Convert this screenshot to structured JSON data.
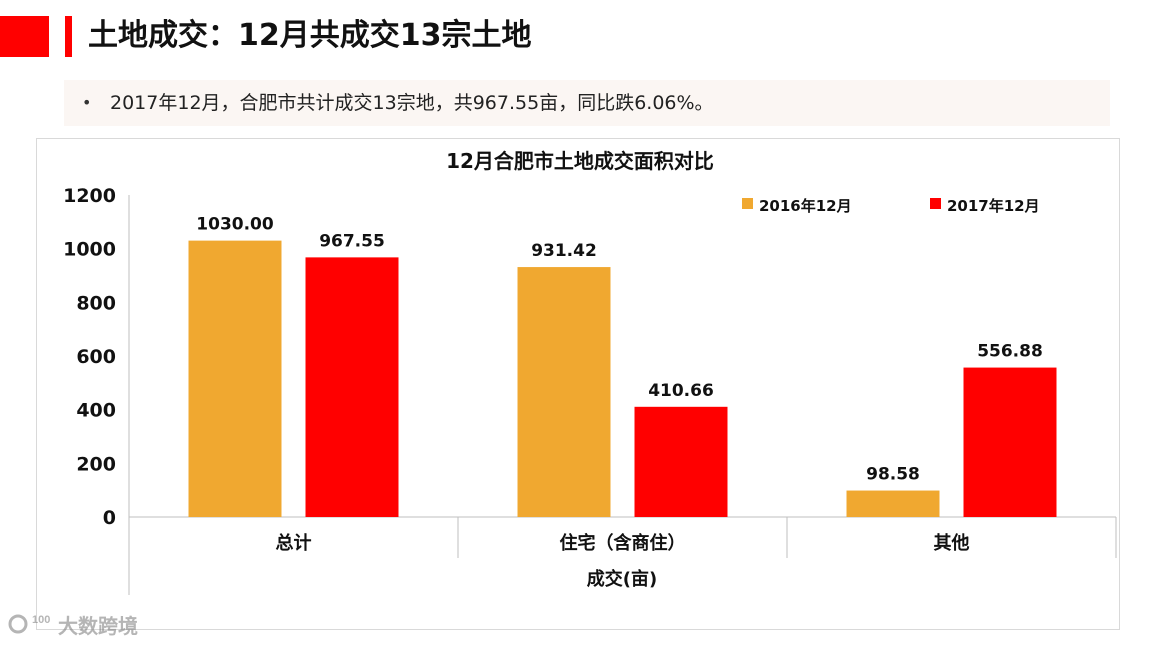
{
  "header": {
    "title": "土地成交：12月共成交13宗土地",
    "bullet": "2017年12月，合肥市共计成交13宗地，共967.55亩，同比跌6.06%。",
    "bullet_marker": "•"
  },
  "watermark": {
    "text": "大数跨境",
    "logo_text": "100"
  },
  "colors": {
    "accent": "#ff0000",
    "series_2016": "#f0a830",
    "series_2017": "#ff0000"
  },
  "chart_data": {
    "type": "bar",
    "title": "12月合肥市土地成交面积对比",
    "xlabel": "成交(亩)",
    "ylabel": "",
    "categories": [
      "总计",
      "住宅（含商住）",
      "其他"
    ],
    "series": [
      {
        "name": "2016年12月",
        "color": "#f0a830",
        "values": [
          1030.0,
          931.42,
          98.58
        ],
        "labels": [
          "1030.00",
          "931.42",
          "98.58"
        ]
      },
      {
        "name": "2017年12月",
        "color": "#ff0000",
        "values": [
          967.55,
          410.66,
          556.88
        ],
        "labels": [
          "967.55",
          "410.66",
          "556.88"
        ]
      }
    ],
    "ylim": [
      0,
      1200
    ],
    "yticks": [
      0,
      200,
      400,
      600,
      800,
      1000,
      1200
    ],
    "legend_position": "top-right",
    "grid": false
  }
}
